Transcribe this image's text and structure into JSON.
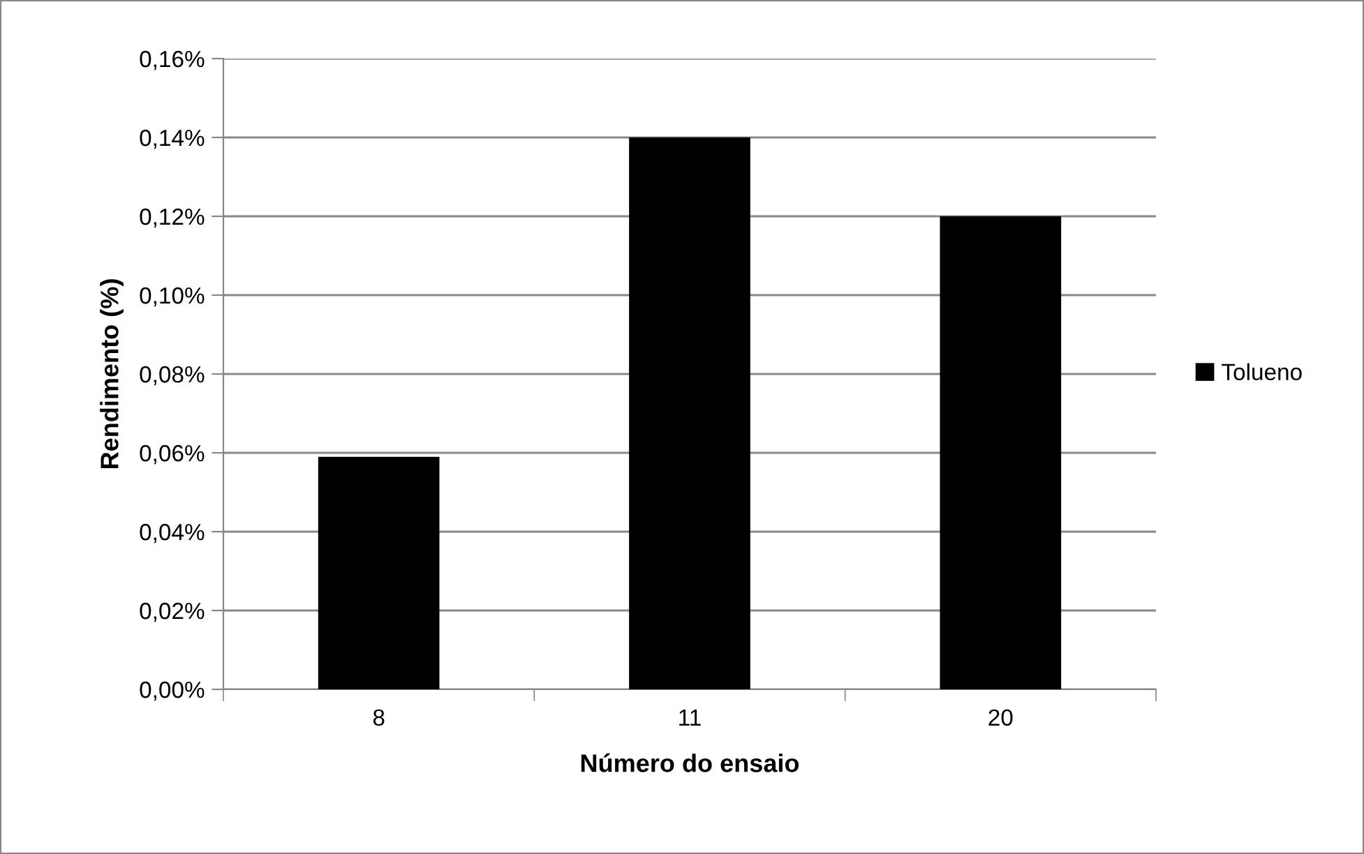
{
  "chart_data": {
    "type": "bar",
    "xlabel": "Número do ensaio",
    "ylabel": "Rendimento (%)",
    "categories": [
      "8",
      "11",
      "20"
    ],
    "series": [
      {
        "name": "Tolueno",
        "color": "#000000",
        "values": [
          0.059,
          0.14,
          0.12
        ]
      }
    ],
    "ylim": [
      0,
      0.16
    ],
    "yticks": [
      {
        "value": 0,
        "label": "0,00%"
      },
      {
        "value": 0.02,
        "label": "0,02%"
      },
      {
        "value": 0.04,
        "label": "0,04%"
      },
      {
        "value": 0.06,
        "label": "0,06%"
      },
      {
        "value": 0.08,
        "label": "0,08%"
      },
      {
        "value": 0.1,
        "label": "0,10%"
      },
      {
        "value": 0.12,
        "label": "0,12%"
      },
      {
        "value": 0.14,
        "label": "0,14%"
      },
      {
        "value": 0.16,
        "label": "0,16%"
      }
    ],
    "grid": "y",
    "legend": "right"
  }
}
